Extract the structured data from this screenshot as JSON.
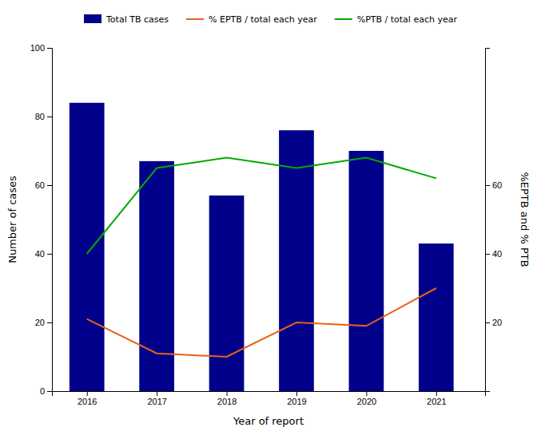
{
  "chart_data": {
    "type": "bar",
    "x": [
      2016,
      2017,
      2018,
      2019,
      2020,
      2021
    ],
    "xlim": [
      2015.5,
      2021.7
    ],
    "xticks": [
      2016,
      2017,
      2018,
      2019,
      2020,
      2021
    ],
    "xlabel": "Year of report",
    "ylabel": "Number of cases",
    "y2label": "%EPTB and % PTB",
    "ylim": [
      0,
      100
    ],
    "yticks": [
      0,
      20,
      40,
      60,
      80,
      100
    ],
    "y2lim": [
      0,
      100
    ],
    "y2ticks": [
      20,
      40,
      60
    ],
    "grid": false,
    "legend": "top",
    "series": [
      {
        "name": "Total TB cases",
        "type": "bar",
        "color": "#00008B",
        "values": [
          84,
          67,
          57,
          76,
          70,
          43
        ]
      },
      {
        "name": "% EPTB / total each year",
        "type": "line",
        "color": "#E8611A",
        "axis": "y2",
        "values": [
          21,
          11,
          10,
          20,
          19,
          30
        ]
      },
      {
        "name": "%PTB / total each year",
        "type": "line",
        "color": "#00AA00",
        "axis": "y2",
        "values": [
          40,
          65,
          68,
          65,
          68,
          62
        ]
      }
    ]
  }
}
